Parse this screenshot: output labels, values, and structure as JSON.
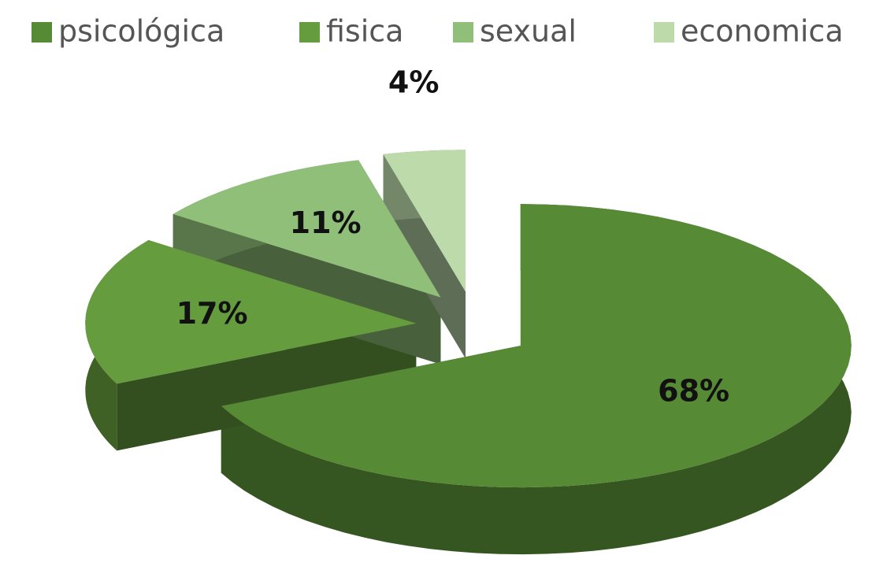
{
  "chart_data": {
    "type": "pie3d",
    "categories": [
      "psicológica",
      "fisica",
      "sexual",
      "economica"
    ],
    "values": [
      68,
      17,
      11,
      4
    ],
    "value_labels": [
      "68%",
      "17%",
      "11%",
      "4%"
    ],
    "colors": [
      "#578a35",
      "#659c3e",
      "#8fbf78",
      "#bcdaaa"
    ],
    "legend": "top"
  }
}
